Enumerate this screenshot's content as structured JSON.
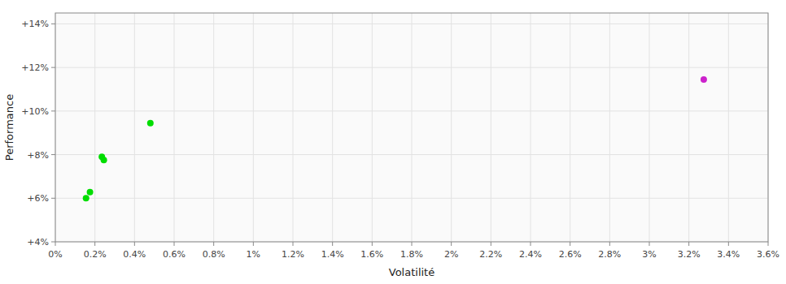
{
  "chart_data": {
    "type": "scatter",
    "xlabel": "Volatilité",
    "ylabel": "Performance",
    "series": [
      {
        "color": "#00dd00",
        "x": [
          0.00175,
          0.00155,
          0.00235,
          0.00245,
          0.0048
        ],
        "values": [
          0.0628,
          0.06,
          0.079,
          0.0775,
          0.0945
        ]
      },
      {
        "color": "#cc22cc",
        "x": [
          0.03275
        ],
        "values": [
          0.1145
        ]
      }
    ],
    "xlim": [
      0.0,
      0.036
    ],
    "ylim": [
      0.04,
      0.145
    ],
    "xticks": [
      {
        "value": 0,
        "label": "0%"
      },
      {
        "value": 0.002,
        "label": "0.2%"
      },
      {
        "value": 0.004,
        "label": "0.4%"
      },
      {
        "value": 0.006,
        "label": "0.6%"
      },
      {
        "value": 0.008,
        "label": "0.8%"
      },
      {
        "value": 0.01,
        "label": "1%"
      },
      {
        "value": 0.012,
        "label": "1.2%"
      },
      {
        "value": 0.014,
        "label": "1.4%"
      },
      {
        "value": 0.016,
        "label": "1.6%"
      },
      {
        "value": 0.018,
        "label": "1.8%"
      },
      {
        "value": 0.02,
        "label": "2%"
      },
      {
        "value": 0.022,
        "label": "2.2%"
      },
      {
        "value": 0.024,
        "label": "2.4%"
      },
      {
        "value": 0.026,
        "label": "2.6%"
      },
      {
        "value": 0.028,
        "label": "2.8%"
      },
      {
        "value": 0.03,
        "label": "3%"
      },
      {
        "value": 0.032,
        "label": "3.2%"
      },
      {
        "value": 0.034,
        "label": "3.4%"
      },
      {
        "value": 0.036,
        "label": "3.6%"
      }
    ],
    "yticks": [
      {
        "value": 0.04,
        "label": "+4%"
      },
      {
        "value": 0.06,
        "label": "+6%"
      },
      {
        "value": 0.08,
        "label": "+8%"
      },
      {
        "value": 0.1,
        "label": "+10%"
      },
      {
        "value": 0.12,
        "label": "+12%"
      },
      {
        "value": 0.14,
        "label": "+14%"
      }
    ],
    "grid": true
  }
}
